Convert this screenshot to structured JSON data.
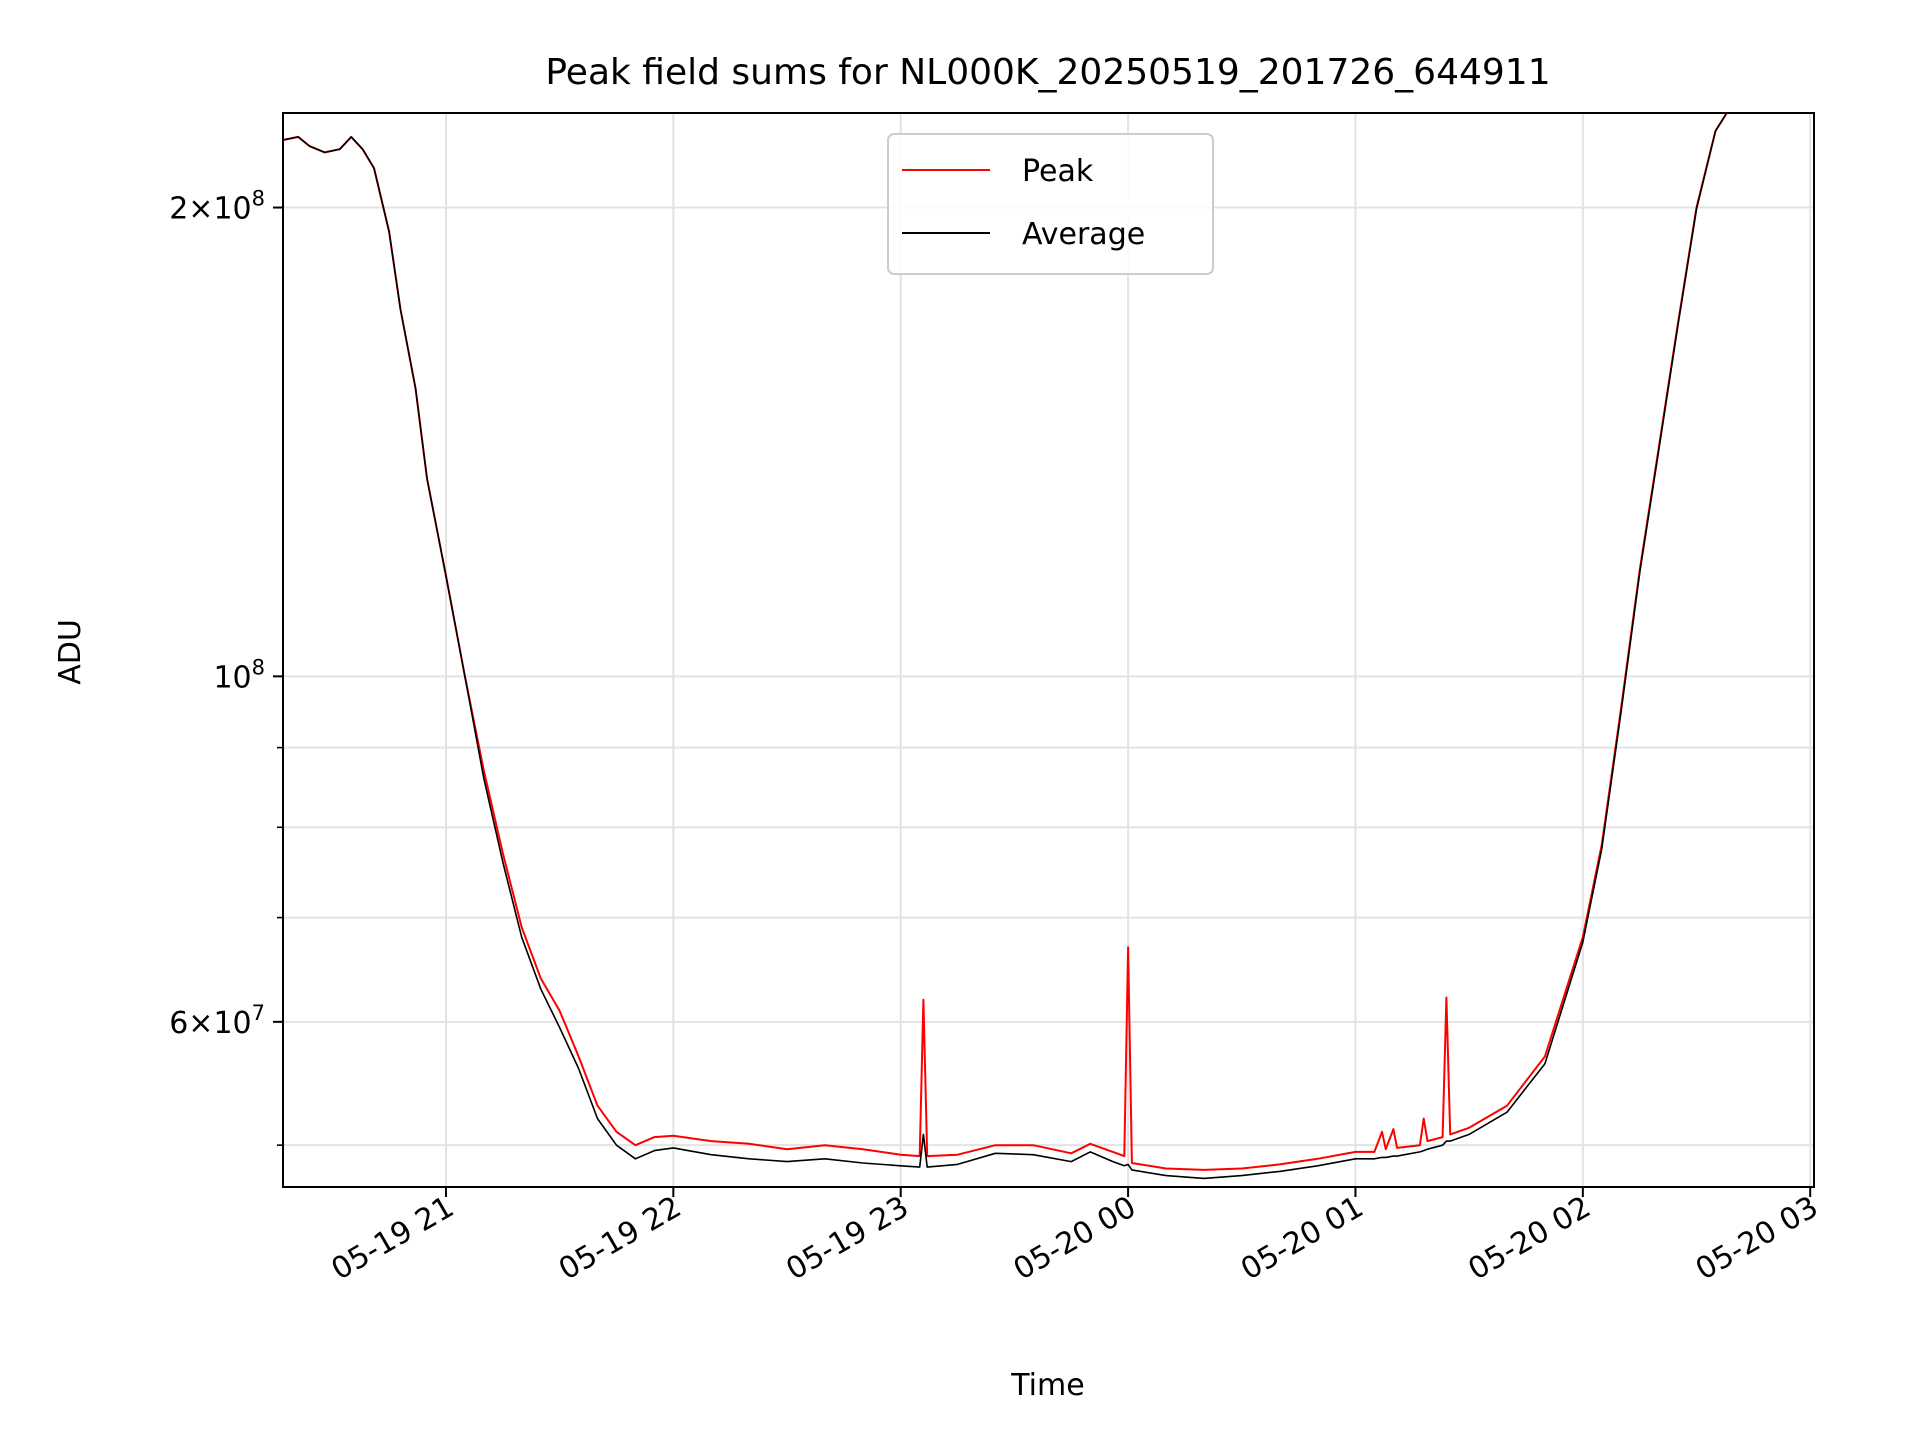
{
  "chart_data": {
    "type": "line",
    "title": "Peak field sums for NL000K_20250519_201726_644911",
    "xlabel": "Time",
    "ylabel": "ADU",
    "y_scale": "log",
    "ylim": [
      47000000,
      230000000
    ],
    "xlim": [
      "2025-05-19 20:17",
      "2025-05-20 03:01"
    ],
    "grid": true,
    "legend_position": "top-center",
    "x_ticks": [
      {
        "label": "05-19 21",
        "value": "2025-05-19 21:00"
      },
      {
        "label": "05-19 22",
        "value": "2025-05-19 22:00"
      },
      {
        "label": "05-19 23",
        "value": "2025-05-19 23:00"
      },
      {
        "label": "05-20 00",
        "value": "2025-05-20 00:00"
      },
      {
        "label": "05-20 01",
        "value": "2025-05-20 01:00"
      },
      {
        "label": "05-20 02",
        "value": "2025-05-20 02:00"
      },
      {
        "label": "05-20 03",
        "value": "2025-05-20 03:00"
      }
    ],
    "y_major_ticks": [
      {
        "value": 200000000,
        "base": "2",
        "exp": "8"
      },
      {
        "value": 100000000,
        "base": "",
        "exp": "8"
      },
      {
        "value": 60000000,
        "base": "6",
        "exp": "7"
      }
    ],
    "y_minor_ticks": [
      50000000,
      70000000,
      80000000,
      90000000
    ],
    "series": [
      {
        "name": "Peak",
        "color": "#ff0000",
        "points": [
          [
            "2025-05-19 20:17",
            221000000
          ],
          [
            "2025-05-19 20:21",
            222000000
          ],
          [
            "2025-05-19 20:24",
            219000000
          ],
          [
            "2025-05-19 20:28",
            217000000
          ],
          [
            "2025-05-19 20:32",
            218000000
          ],
          [
            "2025-05-19 20:35",
            222000000
          ],
          [
            "2025-05-19 20:38",
            218000000
          ],
          [
            "2025-05-19 20:41",
            212000000
          ],
          [
            "2025-05-19 20:45",
            193000000
          ],
          [
            "2025-05-19 20:48",
            172000000
          ],
          [
            "2025-05-19 20:52",
            153000000
          ],
          [
            "2025-05-19 20:55",
            134000000
          ],
          [
            "2025-05-19 21:00",
            116000000
          ],
          [
            "2025-05-19 21:05",
            100000000
          ],
          [
            "2025-05-19 21:10",
            87000000
          ],
          [
            "2025-05-19 21:15",
            77000000
          ],
          [
            "2025-05-19 21:20",
            69000000
          ],
          [
            "2025-05-19 21:25",
            64000000
          ],
          [
            "2025-05-19 21:30",
            61000000
          ],
          [
            "2025-05-19 21:35",
            57000000
          ],
          [
            "2025-05-19 21:40",
            53000000
          ],
          [
            "2025-05-19 21:45",
            51000000
          ],
          [
            "2025-05-19 21:50",
            50000000
          ],
          [
            "2025-05-19 21:55",
            50600000
          ],
          [
            "2025-05-19 22:00",
            50700000
          ],
          [
            "2025-05-19 22:10",
            50300000
          ],
          [
            "2025-05-19 22:20",
            50100000
          ],
          [
            "2025-05-19 22:30",
            49700000
          ],
          [
            "2025-05-19 22:40",
            50000000
          ],
          [
            "2025-05-19 22:50",
            49700000
          ],
          [
            "2025-05-19 23:00",
            49300000
          ],
          [
            "2025-05-19 23:05",
            49200000
          ],
          [
            "2025-05-19 23:06",
            62000000
          ],
          [
            "2025-05-19 23:07",
            49200000
          ],
          [
            "2025-05-19 23:15",
            49300000
          ],
          [
            "2025-05-19 23:25",
            50000000
          ],
          [
            "2025-05-19 23:35",
            50000000
          ],
          [
            "2025-05-19 23:45",
            49400000
          ],
          [
            "2025-05-19 23:50",
            50100000
          ],
          [
            "2025-05-19 23:56",
            49500000
          ],
          [
            "2025-05-19 23:59",
            49200000
          ],
          [
            "2025-05-20 00:00",
            67000000
          ],
          [
            "2025-05-20 00:01",
            48700000
          ],
          [
            "2025-05-20 00:10",
            48300000
          ],
          [
            "2025-05-20 00:20",
            48200000
          ],
          [
            "2025-05-20 00:30",
            48300000
          ],
          [
            "2025-05-20 00:40",
            48600000
          ],
          [
            "2025-05-20 00:50",
            49000000
          ],
          [
            "2025-05-20 01:00",
            49500000
          ],
          [
            "2025-05-20 01:05",
            49500000
          ],
          [
            "2025-05-20 01:07",
            51000000
          ],
          [
            "2025-05-20 01:08",
            49700000
          ],
          [
            "2025-05-20 01:10",
            51200000
          ],
          [
            "2025-05-20 01:11",
            49800000
          ],
          [
            "2025-05-20 01:17",
            50000000
          ],
          [
            "2025-05-20 01:18",
            52000000
          ],
          [
            "2025-05-20 01:19",
            50300000
          ],
          [
            "2025-05-20 01:23",
            50600000
          ],
          [
            "2025-05-20 01:24",
            62200000
          ],
          [
            "2025-05-20 01:25",
            50800000
          ],
          [
            "2025-05-20 01:30",
            51300000
          ],
          [
            "2025-05-20 01:40",
            53000000
          ],
          [
            "2025-05-20 01:50",
            57000000
          ],
          [
            "2025-05-20 02:00",
            68000000
          ],
          [
            "2025-05-20 02:05",
            78000000
          ],
          [
            "2025-05-20 02:10",
            95000000
          ],
          [
            "2025-05-20 02:15",
            117000000
          ],
          [
            "2025-05-20 02:20",
            140000000
          ],
          [
            "2025-05-20 02:25",
            168000000
          ],
          [
            "2025-05-20 02:30",
            200000000
          ],
          [
            "2025-05-20 02:35",
            224000000
          ],
          [
            "2025-05-20 02:38",
            230000000
          ],
          [
            "2025-05-20 02:45",
            230000000
          ]
        ]
      },
      {
        "name": "Average",
        "color": "#000000",
        "points": [
          [
            "2025-05-19 20:17",
            221000000
          ],
          [
            "2025-05-19 20:21",
            222000000
          ],
          [
            "2025-05-19 20:24",
            219000000
          ],
          [
            "2025-05-19 20:28",
            217000000
          ],
          [
            "2025-05-19 20:32",
            218000000
          ],
          [
            "2025-05-19 20:35",
            222000000
          ],
          [
            "2025-05-19 20:38",
            218000000
          ],
          [
            "2025-05-19 20:41",
            212000000
          ],
          [
            "2025-05-19 20:45",
            193000000
          ],
          [
            "2025-05-19 20:48",
            172000000
          ],
          [
            "2025-05-19 20:52",
            153000000
          ],
          [
            "2025-05-19 20:55",
            134000000
          ],
          [
            "2025-05-19 21:00",
            116000000
          ],
          [
            "2025-05-19 21:05",
            100000000
          ],
          [
            "2025-05-19 21:10",
            86000000
          ],
          [
            "2025-05-19 21:15",
            76000000
          ],
          [
            "2025-05-19 21:20",
            68000000
          ],
          [
            "2025-05-19 21:25",
            63000000
          ],
          [
            "2025-05-19 21:30",
            59500000
          ],
          [
            "2025-05-19 21:35",
            56000000
          ],
          [
            "2025-05-19 21:40",
            52000000
          ],
          [
            "2025-05-19 21:45",
            50000000
          ],
          [
            "2025-05-19 21:50",
            49000000
          ],
          [
            "2025-05-19 21:55",
            49600000
          ],
          [
            "2025-05-19 22:00",
            49800000
          ],
          [
            "2025-05-19 22:10",
            49300000
          ],
          [
            "2025-05-19 22:20",
            49000000
          ],
          [
            "2025-05-19 22:30",
            48800000
          ],
          [
            "2025-05-19 22:40",
            49000000
          ],
          [
            "2025-05-19 22:50",
            48700000
          ],
          [
            "2025-05-19 23:00",
            48500000
          ],
          [
            "2025-05-19 23:05",
            48400000
          ],
          [
            "2025-05-19 23:06",
            50800000
          ],
          [
            "2025-05-19 23:07",
            48400000
          ],
          [
            "2025-05-19 23:15",
            48600000
          ],
          [
            "2025-05-19 23:25",
            49400000
          ],
          [
            "2025-05-19 23:35",
            49300000
          ],
          [
            "2025-05-19 23:45",
            48800000
          ],
          [
            "2025-05-19 23:50",
            49500000
          ],
          [
            "2025-05-19 23:56",
            48800000
          ],
          [
            "2025-05-19 23:59",
            48500000
          ],
          [
            "2025-05-20 00:00",
            48600000
          ],
          [
            "2025-05-20 00:01",
            48200000
          ],
          [
            "2025-05-20 00:10",
            47800000
          ],
          [
            "2025-05-20 00:20",
            47600000
          ],
          [
            "2025-05-20 00:30",
            47800000
          ],
          [
            "2025-05-20 00:40",
            48100000
          ],
          [
            "2025-05-20 00:50",
            48500000
          ],
          [
            "2025-05-20 01:00",
            49000000
          ],
          [
            "2025-05-20 01:05",
            49000000
          ],
          [
            "2025-05-20 01:07",
            49100000
          ],
          [
            "2025-05-20 01:08",
            49100000
          ],
          [
            "2025-05-20 01:10",
            49200000
          ],
          [
            "2025-05-20 01:11",
            49200000
          ],
          [
            "2025-05-20 01:17",
            49500000
          ],
          [
            "2025-05-20 01:18",
            49600000
          ],
          [
            "2025-05-20 01:19",
            49700000
          ],
          [
            "2025-05-20 01:23",
            50000000
          ],
          [
            "2025-05-20 01:24",
            50300000
          ],
          [
            "2025-05-20 01:25",
            50300000
          ],
          [
            "2025-05-20 01:30",
            50800000
          ],
          [
            "2025-05-20 01:40",
            52500000
          ],
          [
            "2025-05-20 01:50",
            56400000
          ],
          [
            "2025-05-20 02:00",
            67500000
          ],
          [
            "2025-05-20 02:05",
            77500000
          ],
          [
            "2025-05-20 02:10",
            94500000
          ],
          [
            "2025-05-20 02:15",
            116500000
          ],
          [
            "2025-05-20 02:20",
            139500000
          ],
          [
            "2025-05-20 02:25",
            167500000
          ],
          [
            "2025-05-20 02:30",
            199500000
          ],
          [
            "2025-05-20 02:35",
            224000000
          ],
          [
            "2025-05-20 02:38",
            230000000
          ],
          [
            "2025-05-20 02:45",
            230000000
          ]
        ]
      }
    ]
  }
}
